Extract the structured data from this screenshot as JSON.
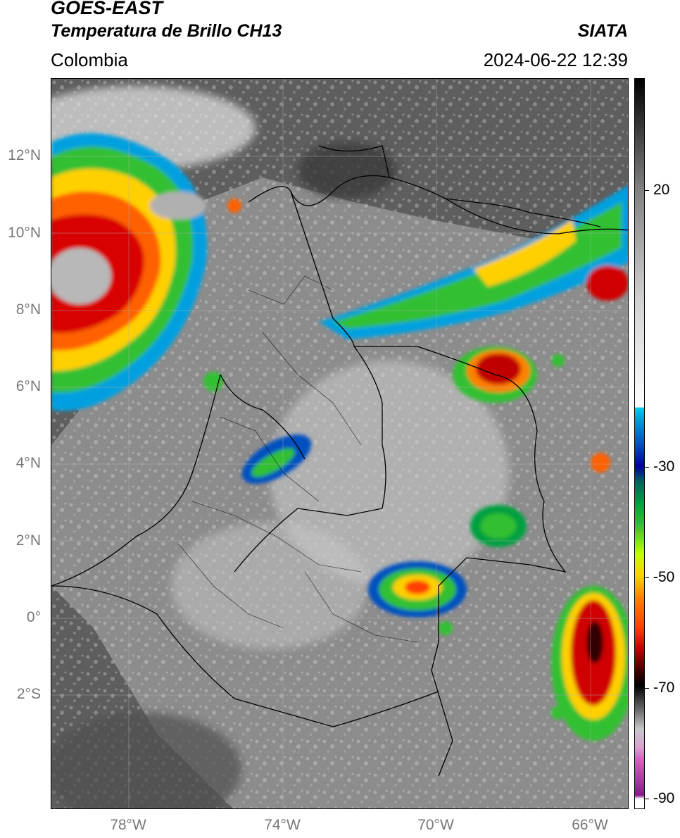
{
  "header": {
    "satellite": "GOES-EAST",
    "product": "Temperatura de Brillo CH13",
    "organization": "SIATA",
    "region": "Colombia",
    "timestamp": "2024-06-22 12:39"
  },
  "map": {
    "lat_labels": [
      "12°N",
      "10°N",
      "8°N",
      "6°N",
      "4°N",
      "2°N",
      "0°",
      "2°S"
    ],
    "lon_labels": [
      "78°W",
      "74°W",
      "70°W",
      "66°W"
    ],
    "extent": {
      "lon_min": -80,
      "lon_max": -65,
      "lat_min": -5,
      "lat_max": 14
    },
    "colors": {
      "ocean_gray": "#5a5a5a",
      "land_gray": "#8a8a8a",
      "border": "#000000"
    }
  },
  "colorbar": {
    "ticks": [
      "20",
      "-30",
      "-50",
      "-70",
      "-90"
    ],
    "range": [
      -92,
      35
    ],
    "stops": [
      "#ffffff",
      "#8b1a8b",
      "#e060c0",
      "#d8a0d0",
      "#c8c8c8",
      "#707070",
      "#202020",
      "#400000",
      "#c00000",
      "#ff4000",
      "#ff8000",
      "#ffd000",
      "#c0ff00",
      "#30c030",
      "#00a040",
      "#006060",
      "#0000a0",
      "#0050c0",
      "#00a0e0",
      "#00d0f0",
      "#ffffff",
      "#000000"
    ]
  }
}
